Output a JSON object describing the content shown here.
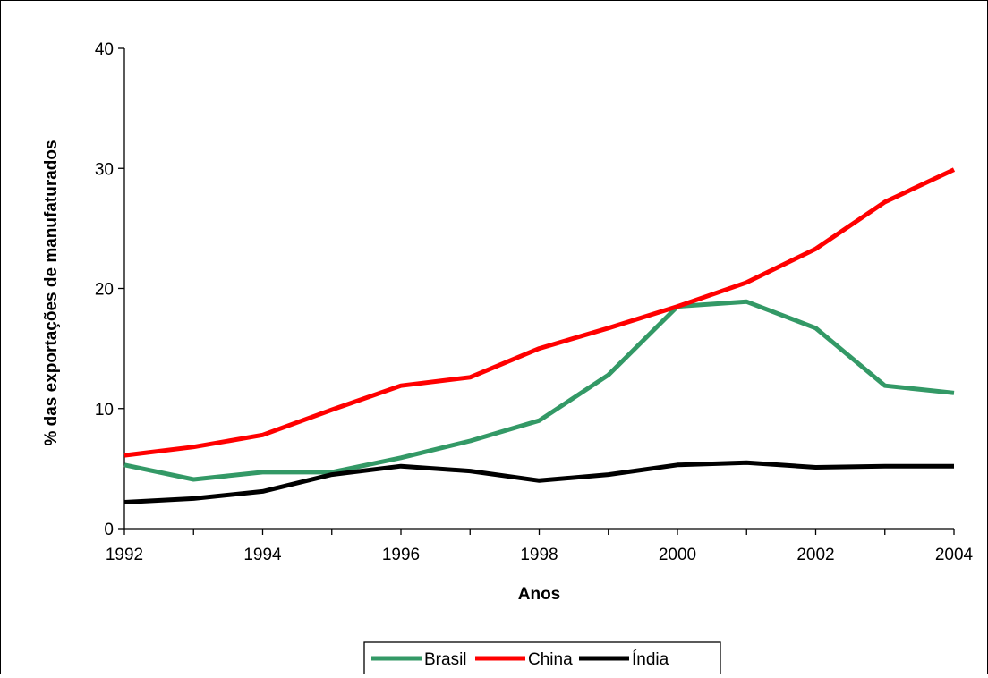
{
  "chart_data": {
    "type": "line",
    "title": "",
    "xlabel": "Anos",
    "ylabel": "% das exportações de manufaturados",
    "x": [
      1992,
      1993,
      1994,
      1995,
      1996,
      1997,
      1998,
      1999,
      2000,
      2001,
      2002,
      2003,
      2004
    ],
    "xticks": [
      "1992",
      "1994",
      "1996",
      "1998",
      "2000",
      "2002",
      "2004"
    ],
    "yticks": [
      "0",
      "10",
      "20",
      "30",
      "40"
    ],
    "xlim": [
      1992,
      2004
    ],
    "ylim": [
      0,
      40
    ],
    "grid": false,
    "legend_position": "bottom",
    "series": [
      {
        "name": "Brasil",
        "color": "#339966",
        "values": [
          5.3,
          4.1,
          4.7,
          4.7,
          5.9,
          7.3,
          9.0,
          12.8,
          18.5,
          18.9,
          16.7,
          11.9,
          11.3
        ]
      },
      {
        "name": "China",
        "color": "#ff0000",
        "values": [
          6.1,
          6.8,
          7.8,
          9.9,
          11.9,
          12.6,
          15.0,
          16.7,
          18.5,
          20.5,
          23.3,
          27.2,
          29.9
        ]
      },
      {
        "name": "Índia",
        "color": "#000000",
        "values": [
          2.2,
          2.5,
          3.1,
          4.5,
          5.2,
          4.8,
          4.0,
          4.5,
          5.3,
          5.5,
          5.1,
          5.2,
          5.2
        ]
      }
    ]
  }
}
